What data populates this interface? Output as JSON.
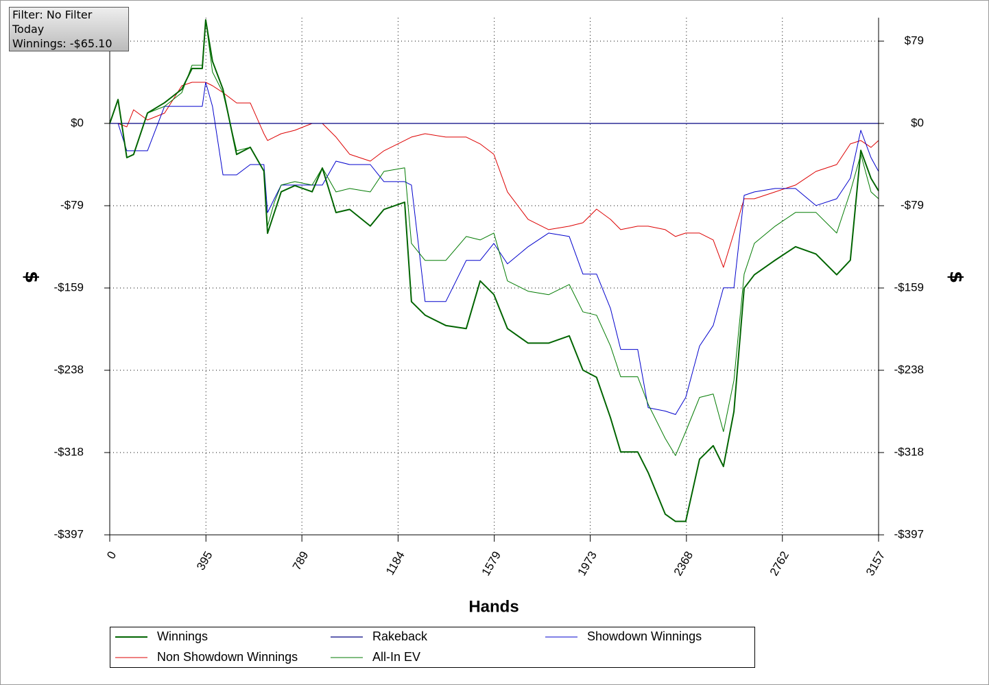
{
  "info_box": {
    "lines": [
      "Filter: No Filter",
      "Today",
      "Winnings: -$65.10"
    ]
  },
  "chart_data": {
    "type": "line",
    "xlabel": "Hands",
    "ylabel": "$",
    "y2label": "$",
    "xlim": [
      0,
      3157
    ],
    "xticks": [
      0,
      395,
      789,
      1184,
      1579,
      1973,
      2368,
      2762,
      3157
    ],
    "ylim": [
      -397,
      102
    ],
    "yticks": [
      {
        "value": 79.4,
        "label": "$79"
      },
      {
        "value": 0,
        "label": "$0"
      },
      {
        "value": -79.4,
        "label": "-$79"
      },
      {
        "value": -158.8,
        "label": "-$159"
      },
      {
        "value": -238.2,
        "label": "-$238"
      },
      {
        "value": -317.6,
        "label": "-$318"
      },
      {
        "value": -397,
        "label": "-$397"
      }
    ],
    "y2lim": [
      -397,
      102
    ],
    "y2ticks": [
      {
        "value": 79.4,
        "label": "$79"
      },
      {
        "value": 0,
        "label": "$0"
      },
      {
        "value": -79.4,
        "label": "-$79"
      },
      {
        "value": -158.8,
        "label": "-$159"
      },
      {
        "value": -238.2,
        "label": "-$238"
      },
      {
        "value": -317.6,
        "label": "-$318"
      },
      {
        "value": -397,
        "label": "-$397"
      }
    ],
    "grid": true,
    "x": [
      0,
      34,
      70,
      98,
      155,
      225,
      296,
      338,
      380,
      394,
      422,
      465,
      521,
      577,
      633,
      648,
      676,
      704,
      760,
      831,
      873,
      929,
      985,
      1070,
      1126,
      1211,
      1239,
      1295,
      1380,
      1464,
      1521,
      1577,
      1633,
      1718,
      1802,
      1887,
      1943,
      1999,
      2056,
      2098,
      2168,
      2211,
      2281,
      2323,
      2365,
      2422,
      2478,
      2520,
      2563,
      2605,
      2647,
      2732,
      2816,
      2900,
      2985,
      3041,
      3084,
      3126,
      3157
    ],
    "series": [
      {
        "name": "Winnings",
        "color": "#006400",
        "width": 2,
        "values": [
          0,
          23,
          -33,
          -30,
          10,
          20,
          33,
          53,
          53,
          100,
          60,
          33,
          -30,
          -23,
          -46,
          -106,
          -86,
          -66,
          -60,
          -66,
          -43,
          -86,
          -83,
          -99,
          -83,
          -76,
          -172,
          -185,
          -195,
          -198,
          -152,
          -165,
          -198,
          -212,
          -212,
          -205,
          -238,
          -245,
          -284,
          -317,
          -317,
          -337,
          -377,
          -384,
          -384,
          -324,
          -311,
          -331,
          -278,
          -159,
          -146,
          -132,
          -119,
          -126,
          -146,
          -132,
          -26,
          -53,
          -65.1
        ]
      },
      {
        "name": "Rakeback",
        "color": "#000080",
        "width": 1.2,
        "values": [
          0,
          0,
          0,
          0,
          0,
          0,
          0,
          0,
          0,
          0,
          0,
          0,
          0,
          0,
          0,
          0,
          0,
          0,
          0,
          0,
          0,
          0,
          0,
          0,
          0,
          0,
          0,
          0,
          0,
          0,
          0,
          0,
          0,
          0,
          0,
          0,
          0,
          0,
          0,
          0,
          0,
          0,
          0,
          0,
          0,
          0,
          0,
          0,
          0,
          0,
          0,
          0,
          0,
          0,
          0,
          0,
          0,
          0,
          0
        ]
      },
      {
        "name": "Showdown Winnings",
        "color": "#0000cc",
        "width": 1,
        "values": [
          0,
          0,
          -26.4,
          -26.4,
          -26.4,
          16.5,
          16.5,
          16.5,
          16.5,
          39.7,
          16.5,
          -49.6,
          -49.6,
          -39.7,
          -39.7,
          -86,
          -72.7,
          -59.5,
          -59.5,
          -59.5,
          -59.5,
          -36.4,
          -39.7,
          -39.7,
          -56.2,
          -56.2,
          -59.5,
          -171.9,
          -171.9,
          -132.2,
          -132.2,
          -115.7,
          -135.5,
          -119,
          -105.8,
          -109.1,
          -145.4,
          -145.4,
          -178.5,
          -218.1,
          -218.1,
          -274.3,
          -277.6,
          -280.9,
          -264.4,
          -214.8,
          -195,
          -158.6,
          -158.6,
          -69.4,
          -66.1,
          -62.8,
          -62.8,
          -79.3,
          -72.7,
          -52.9,
          -6.6,
          -33,
          -46.3
        ]
      },
      {
        "name": "Non Showdown Winnings",
        "color": "#dd0000",
        "width": 1,
        "values": [
          0,
          0,
          -3.3,
          13.2,
          3.3,
          9.9,
          36.4,
          39.7,
          39.7,
          39.7,
          36.4,
          29.8,
          19.8,
          19.8,
          -9.9,
          -16.5,
          -13.2,
          -9.9,
          -6.6,
          0,
          0,
          -13.2,
          -29.8,
          -36.4,
          -26.4,
          -16.5,
          -13.2,
          -9.9,
          -13.2,
          -13.2,
          -19.8,
          -29.8,
          -66.1,
          -92.6,
          -102.5,
          -99.2,
          -95.9,
          -82.7,
          -92.6,
          -102.5,
          -99.2,
          -99.2,
          -102.5,
          -109.1,
          -105.8,
          -105.8,
          -112.4,
          -138.9,
          -105.8,
          -72.7,
          -72.7,
          -66.1,
          -59.5,
          -46.3,
          -39.7,
          -19.8,
          -16.5,
          -23.1,
          -16.5
        ]
      },
      {
        "name": "All-In EV",
        "color": "#007a00",
        "width": 1,
        "values": [
          0,
          23.1,
          -33,
          -29.7,
          9.9,
          16.5,
          29.7,
          56.2,
          56.2,
          100,
          49.6,
          29.7,
          -26.4,
          -23.1,
          -46.3,
          -99.2,
          -76,
          -59.5,
          -56.2,
          -59.5,
          -42.9,
          -66.1,
          -62.8,
          -66.1,
          -46.3,
          -42.9,
          -115.7,
          -132.2,
          -132.2,
          -109.1,
          -112.4,
          -105.8,
          -152,
          -161.9,
          -165.3,
          -155.4,
          -181.8,
          -185.1,
          -214.8,
          -244.5,
          -244.5,
          -271,
          -304,
          -320.5,
          -297.4,
          -264.4,
          -261.1,
          -297.4,
          -247.9,
          -145.4,
          -115.7,
          -99.2,
          -85.9,
          -85.9,
          -105.8,
          -66.1,
          -29.7,
          -66.1,
          -72.7
        ]
      }
    ]
  }
}
